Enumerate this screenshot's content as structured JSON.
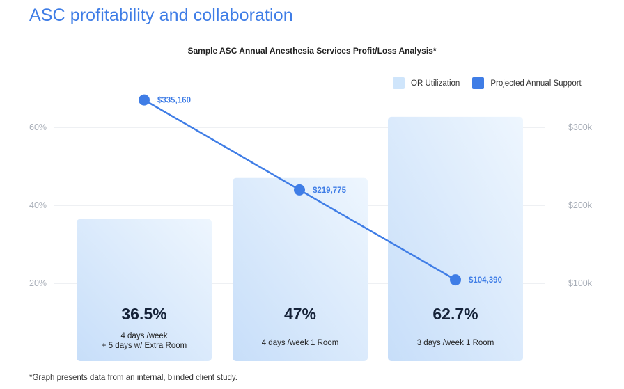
{
  "page": {
    "title": "ASC profitability and collaboration",
    "footnote": "*Graph presents data from an internal, blinded client study."
  },
  "chart_data": {
    "type": "bar+line",
    "title": "Sample ASC Annual Anesthesia Services Profit/Loss Analysis*",
    "legend": [
      {
        "name": "OR Utilization",
        "color": "#cfe5fb"
      },
      {
        "name": "Projected Annual Support",
        "color": "#3f7de6"
      }
    ],
    "legend_position": "top-right",
    "grid": true,
    "y_left": {
      "ticks": [
        20,
        40,
        60
      ],
      "tick_labels": [
        "20%",
        "40%",
        "60%"
      ],
      "range": [
        0,
        70
      ]
    },
    "y_right": {
      "ticks": [
        100000,
        200000,
        300000
      ],
      "tick_labels": [
        "$100k",
        "$200k",
        "$300k"
      ],
      "range": [
        0,
        350000
      ]
    },
    "categories": [
      {
        "value_label": "36.5%",
        "lines": [
          "4 days /week",
          "+ 5 days w/ Extra Room"
        ]
      },
      {
        "value_label": "47%",
        "lines": [
          "4 days /week 1 Room"
        ]
      },
      {
        "value_label": "62.7%",
        "lines": [
          "3 days /week 1 Room"
        ]
      }
    ],
    "series": [
      {
        "name": "OR Utilization",
        "type": "bar",
        "axis": "left",
        "values": [
          36.5,
          47,
          62.7
        ]
      },
      {
        "name": "Projected Annual Support",
        "type": "line",
        "axis": "right",
        "values": [
          335160,
          219775,
          104390
        ],
        "labels": [
          "$335,160",
          "$219,775",
          "$104,390"
        ]
      }
    ]
  }
}
